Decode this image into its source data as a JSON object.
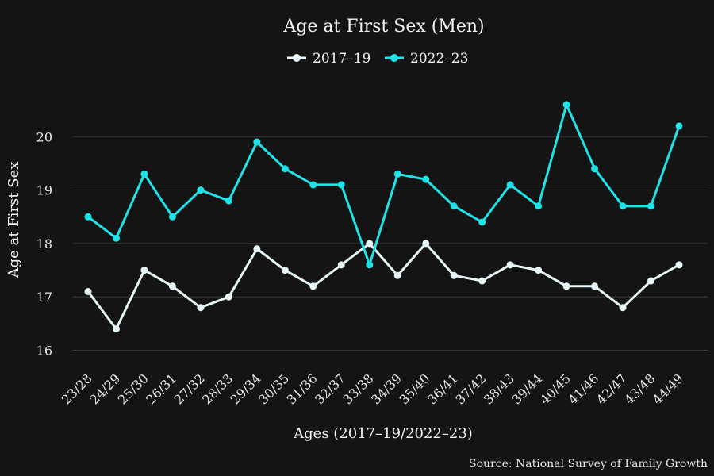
{
  "chart_data": {
    "type": "line",
    "title": "Age at First Sex (Men)",
    "xlabel": "Ages (2017–19/2022–23)",
    "ylabel": "Age at First Sex",
    "source": "Source: National Survey of Family Growth",
    "categories": [
      "23/28",
      "24/29",
      "25/30",
      "26/31",
      "27/32",
      "28/33",
      "29/34",
      "30/35",
      "31/36",
      "32/37",
      "33/38",
      "34/39",
      "35/40",
      "36/41",
      "37/42",
      "38/43",
      "39/44",
      "40/45",
      "41/46",
      "42/47",
      "43/48",
      "44/49"
    ],
    "ylim": [
      15.8,
      21.0
    ],
    "yticks": [
      16,
      17,
      18,
      19,
      20
    ],
    "grid": true,
    "legend_position": "top-center",
    "series": [
      {
        "name": "2017–19",
        "color": "#e6f6f6",
        "values": [
          17.1,
          16.4,
          17.5,
          17.2,
          16.8,
          17.0,
          17.9,
          17.5,
          17.2,
          17.6,
          18.0,
          17.4,
          18.0,
          17.4,
          17.3,
          17.6,
          17.5,
          17.2,
          17.2,
          16.8,
          17.3,
          17.6
        ]
      },
      {
        "name": "2022–23",
        "color": "#20e3e8",
        "values": [
          18.5,
          18.1,
          19.3,
          18.5,
          19.0,
          18.8,
          19.9,
          19.4,
          19.1,
          19.1,
          17.6,
          19.3,
          19.2,
          18.7,
          18.4,
          19.1,
          18.7,
          20.6,
          19.4,
          18.7,
          18.7,
          20.2
        ]
      }
    ]
  }
}
